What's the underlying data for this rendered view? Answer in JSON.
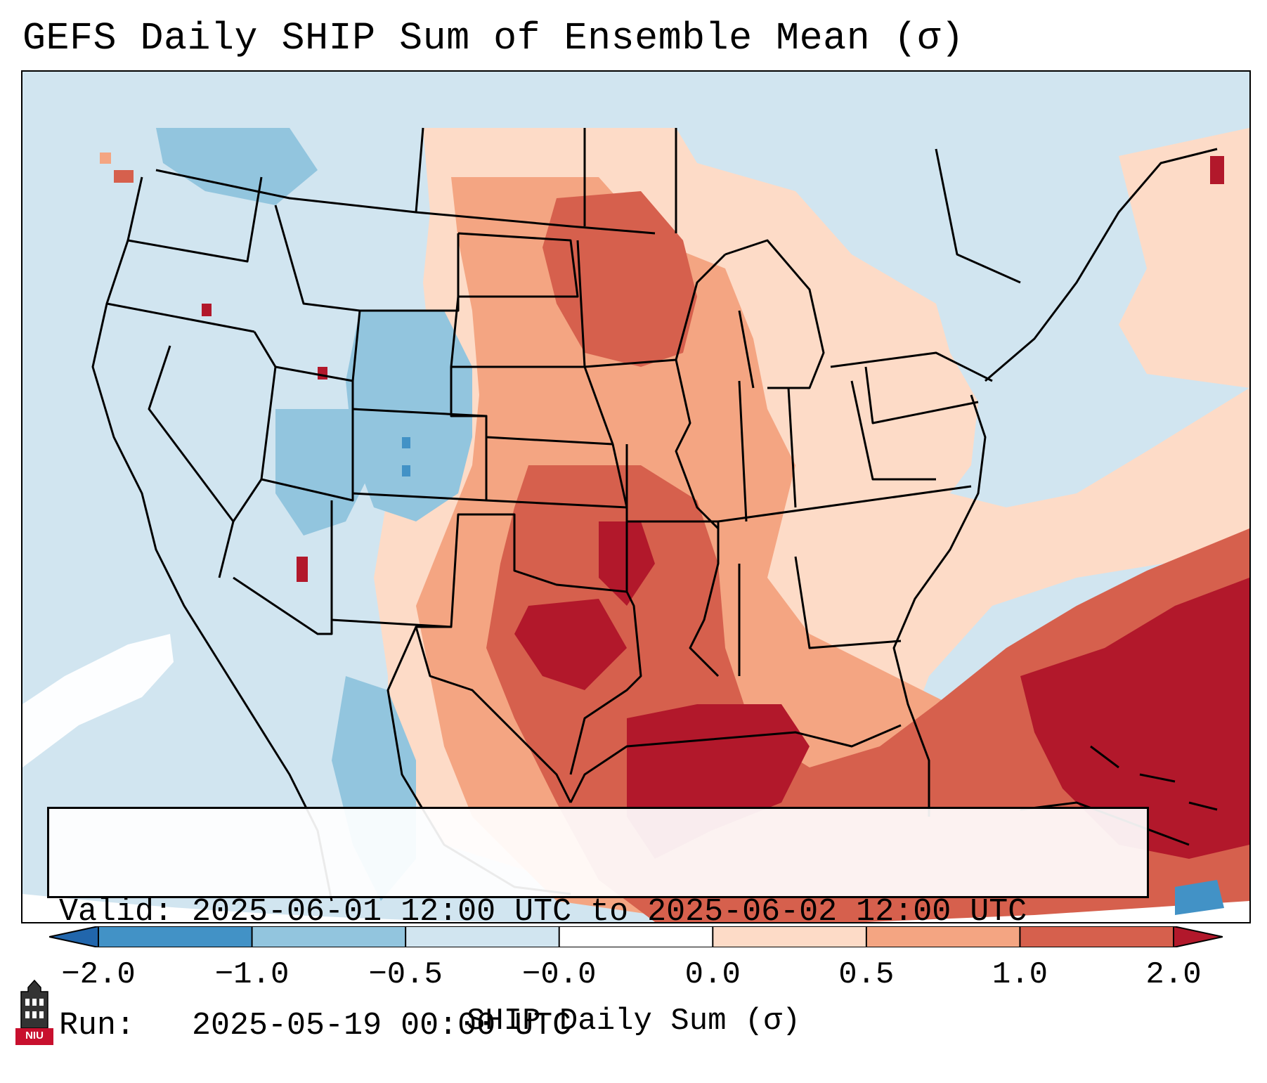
{
  "title": "GEFS Daily SHIP Sum of Ensemble Mean (σ)",
  "info": {
    "valid_line": "Valid: 2025-06-01 12:00 UTC to 2025-06-02 12:00 UTC",
    "run_line": "Run:   2025-05-19 00:00 UTC"
  },
  "colorbar": {
    "label": "SHIP Daily Sum (σ)",
    "ticks": [
      "−2.0",
      "−1.0",
      "−0.5",
      "−0.0",
      "0.0",
      "0.5",
      "1.0",
      "2.0"
    ],
    "bins": [
      {
        "range": "-2.0 to -1.0",
        "color": "#4292c6"
      },
      {
        "range": "-1.0 to -0.5",
        "color": "#92c5de"
      },
      {
        "range": "-0.5 to -0.0",
        "color": "#d1e5f0"
      },
      {
        "range": "-0.0 to 0.0",
        "color": "#ffffff"
      },
      {
        "range": "0.0 to 0.5",
        "color": "#fddbc7"
      },
      {
        "range": "0.5 to 1.0",
        "color": "#f4a582"
      },
      {
        "range": "1.0 to 2.0",
        "color": "#d6604d"
      },
      {
        "range": ">2.0",
        "color": "#b2182b"
      }
    ],
    "under_color": "#2166ac",
    "over_color": "#b2182b"
  },
  "logo": {
    "text": "NIU",
    "color": "#c8102e"
  }
}
